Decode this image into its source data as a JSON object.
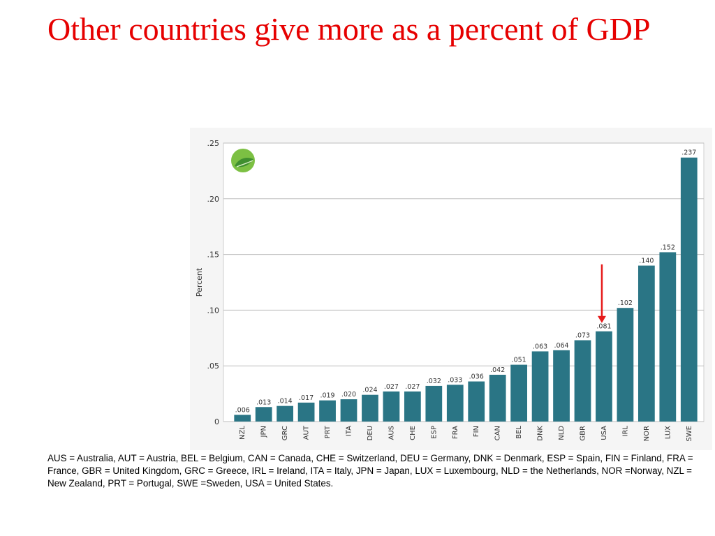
{
  "slide": {
    "title": "Other countries give more as a percent of GDP",
    "footnote": "AUS = Australia, AUT = Austria, BEL = Belgium, CAN = Canada, CHE = Switzerland, DEU = Germany, DNK = Denmark, ESP = Spain, FIN = Finland, FRA = France, GBR = United Kingdom, GRC = Greece, IRL = Ireland, ITA = Italy, JPN = Japan, LUX = Luxembourg, NLD = the Netherlands, NOR =Norway, NZL = New Zealand, PRT = Portugal, SWE =Sweden, USA = United States."
  },
  "colors": {
    "title": "#e60000",
    "bar": "#2a7585",
    "arrow": "#e61c1c",
    "grid": "#bdbdbd"
  },
  "logo_icon": "green-leaf-circle-icon",
  "chart_data": {
    "type": "bar",
    "ylabel": "Percent",
    "xlabel": "",
    "ylim": [
      0,
      0.25
    ],
    "yticks": [
      0,
      0.05,
      0.1,
      0.15,
      0.2,
      0.25
    ],
    "ytick_labels": [
      "0",
      ".05",
      ".10",
      ".15",
      ".20",
      ".25"
    ],
    "categories": [
      "NZL",
      "JPN",
      "GRC",
      "AUT",
      "PRT",
      "ITA",
      "DEU",
      "AUS",
      "CHE",
      "ESP",
      "FRA",
      "FIN",
      "CAN",
      "BEL",
      "DNK",
      "NLD",
      "GBR",
      "USA",
      "IRL",
      "NOR",
      "LUX",
      "SWE"
    ],
    "values": [
      0.006,
      0.013,
      0.014,
      0.017,
      0.019,
      0.02,
      0.024,
      0.027,
      0.027,
      0.032,
      0.033,
      0.036,
      0.042,
      0.051,
      0.063,
      0.064,
      0.073,
      0.081,
      0.102,
      0.14,
      0.152,
      0.237
    ],
    "value_labels": [
      ".006",
      ".013",
      ".014",
      ".017",
      ".019",
      ".020",
      ".024",
      ".027",
      ".027",
      ".032",
      ".033",
      ".036",
      ".042",
      ".051",
      ".063",
      ".064",
      ".073",
      ".081",
      ".102",
      ".140",
      ".152",
      ".237"
    ],
    "grid": true,
    "annotations": [
      {
        "type": "arrow",
        "target_category": "USA",
        "color": "#e61c1c"
      }
    ]
  }
}
